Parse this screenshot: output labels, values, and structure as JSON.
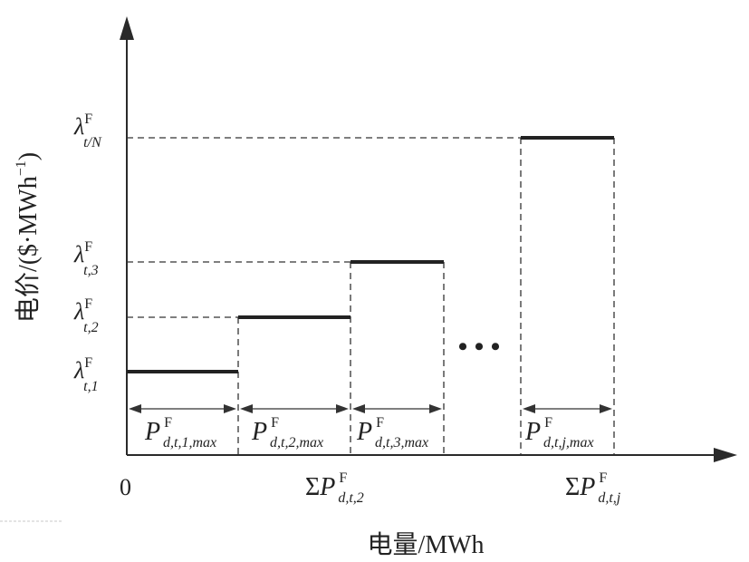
{
  "axes": {
    "y_label": "电价/($·MWh",
    "y_label_sup": "−1",
    "y_label_close": ")",
    "x_label": "电量/MWh",
    "origin": "0"
  },
  "price_levels": [
    {
      "sym": "λ",
      "sup": "F",
      "sub": "t,1"
    },
    {
      "sym": "λ",
      "sup": "F",
      "sub": "t,2"
    },
    {
      "sym": "λ",
      "sup": "F",
      "sub": "t,3"
    },
    {
      "sym": "λ",
      "sup": "F",
      "sub": "t/N"
    }
  ],
  "block_labels": [
    {
      "sym": "P",
      "sup": "F",
      "sub": "d,t,1,max"
    },
    {
      "sym": "P",
      "sup": "F",
      "sub": "d,t,2,max"
    },
    {
      "sym": "P",
      "sup": "F",
      "sub": "d,t,3,max"
    },
    {
      "sym": "P",
      "sup": "F",
      "sub": "d,t,j,max"
    }
  ],
  "cumulative_labels": [
    {
      "pre": "Σ",
      "sym": "P",
      "sup": "F",
      "sub": "d,t,2"
    },
    {
      "pre": "Σ",
      "sym": "P",
      "sup": "F",
      "sub": "d,t,j"
    }
  ],
  "ellipsis": "• • •"
}
